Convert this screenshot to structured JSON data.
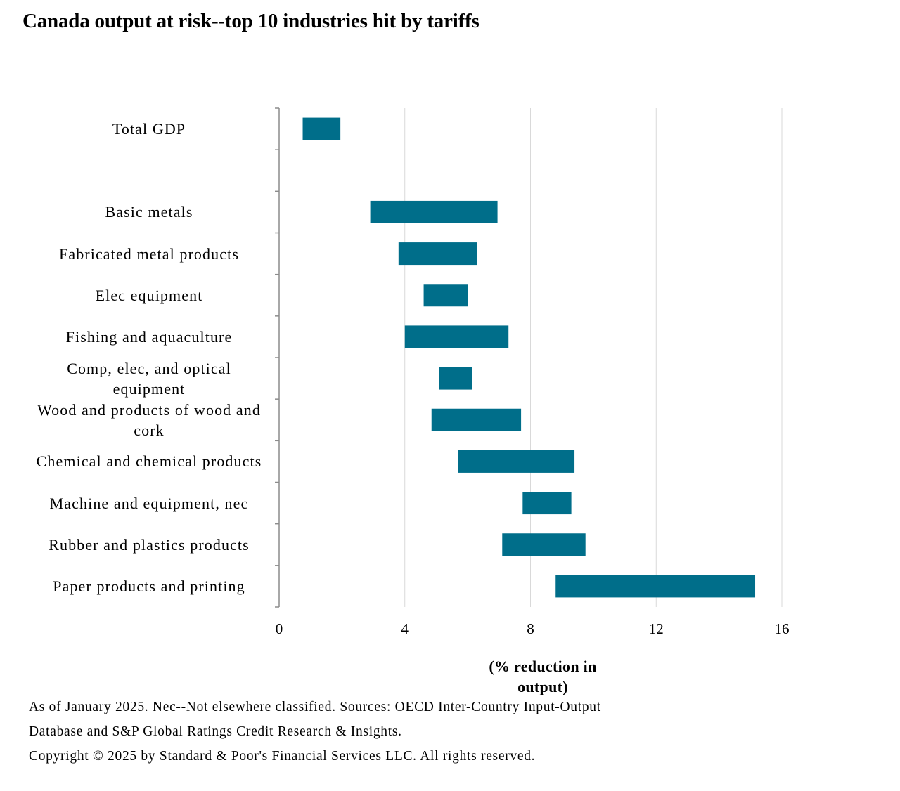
{
  "chart_data": {
    "type": "bar",
    "subtype": "floating-range-horizontal",
    "title": "Canada output at risk--top 10 industries hit by tariffs",
    "xlabel": "(% reduction in output)",
    "ylabel": "",
    "xlim": [
      0,
      16
    ],
    "xticks": [
      "0",
      "4",
      "8",
      "12",
      "16"
    ],
    "grid": "vertical gridlines",
    "legend": "none",
    "bar_color": "#006e8a",
    "categories": [
      "Total GDP",
      "",
      "Basic metals",
      "Fabricated metal products",
      "Elec equipment",
      "Fishing and aquaculture",
      "Comp, elec, and optical equipment",
      "Wood and products of wood and cork",
      "Chemical and chemical products",
      "Machine and equipment, nec",
      "Rubber and plastics products",
      "Paper products and printing"
    ],
    "ranges": [
      [
        0.75,
        1.95
      ],
      null,
      [
        2.9,
        6.95
      ],
      [
        3.8,
        6.3
      ],
      [
        4.6,
        6.0
      ],
      [
        4.0,
        7.3
      ],
      [
        5.1,
        6.15
      ],
      [
        4.85,
        7.7
      ],
      [
        5.7,
        9.4
      ],
      [
        7.75,
        9.3
      ],
      [
        7.1,
        9.75
      ],
      [
        8.8,
        15.15
      ]
    ]
  },
  "footnotes": [
    "As of January 2025. Nec--Not elsewhere classified. Sources: OECD Inter-Country Input-Output",
    "Database and S&P Global Ratings Credit Research & Insights.",
    "Copyright © 2025 by Standard & Poor's Financial Services LLC. All rights reserved."
  ]
}
